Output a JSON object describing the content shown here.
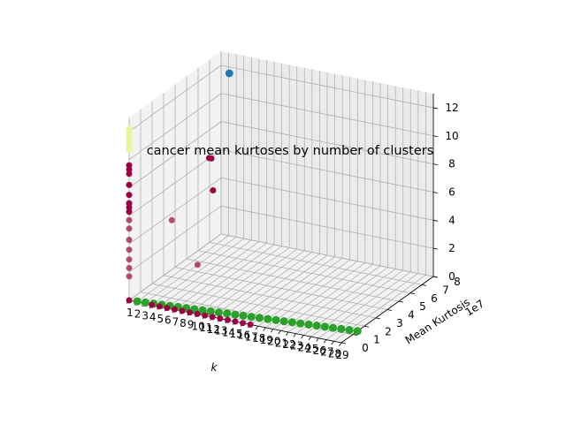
{
  "chart_data": {
    "type": "scatter",
    "projection": "3d",
    "title": "cancer mean kurtoses by number of clusters",
    "xlabel": "k",
    "ylabel": "Mean Kurtosis",
    "zlabel": "",
    "y_offset_label": "1e7",
    "grid": true,
    "x_ticks": [
      "1",
      "2",
      "3",
      "4",
      "5",
      "6",
      "7",
      "8",
      "9",
      "10",
      "11",
      "12",
      "13",
      "14",
      "15",
      "16",
      "17",
      "18",
      "19",
      "20",
      "21",
      "22",
      "23",
      "24",
      "25",
      "26",
      "27",
      "28",
      "29"
    ],
    "y_ticks": [
      "0",
      "1",
      "2",
      "3",
      "4",
      "5",
      "6",
      "7",
      "8"
    ],
    "z_ticks": [
      "0",
      "2",
      "4",
      "6",
      "8",
      "10",
      "12"
    ],
    "xlim": [
      1,
      29
    ],
    "ylim": [
      0,
      8
    ],
    "zlim": [
      0,
      13
    ],
    "colors": {
      "pane": "#f2f2f2",
      "highlight": "#1f77b4",
      "series_a": "#2ca02c",
      "series_b": "#9e0142",
      "series_c": "#e6f598"
    },
    "series": [
      {
        "color": "#2ca02c",
        "points": [
          [
            2,
            0.05,
            0
          ],
          [
            3,
            0.1,
            0
          ],
          [
            4,
            0.15,
            0
          ],
          [
            5,
            0.2,
            0
          ],
          [
            6,
            0.25,
            0
          ],
          [
            7,
            0.3,
            0
          ],
          [
            8,
            0.35,
            0
          ],
          [
            9,
            0.4,
            0
          ],
          [
            10,
            0.45,
            0
          ],
          [
            11,
            0.5,
            0
          ],
          [
            12,
            0.55,
            0
          ],
          [
            13,
            0.6,
            0
          ],
          [
            14,
            0.65,
            0
          ],
          [
            15,
            0.7,
            0
          ],
          [
            16,
            0.75,
            0
          ],
          [
            17,
            0.8,
            0
          ],
          [
            18,
            0.85,
            0
          ],
          [
            19,
            0.9,
            0
          ],
          [
            20,
            0.95,
            0
          ],
          [
            21,
            1.0,
            0
          ],
          [
            22,
            1.05,
            0
          ],
          [
            23,
            1.1,
            0
          ],
          [
            24,
            1.15,
            0
          ],
          [
            25,
            1.2,
            0
          ],
          [
            26,
            1.25,
            0
          ],
          [
            27,
            1.3,
            0
          ],
          [
            28,
            1.35,
            0
          ],
          [
            29,
            1.4,
            0
          ]
        ]
      },
      {
        "color": "#9e0142",
        "points": [
          [
            1,
            0,
            0
          ],
          [
            4,
            0,
            0
          ],
          [
            5,
            0,
            0
          ],
          [
            6,
            0,
            0
          ],
          [
            7,
            0,
            0
          ],
          [
            8,
            0,
            0
          ],
          [
            9,
            0,
            0
          ],
          [
            10,
            0,
            0
          ],
          [
            11,
            0,
            0
          ],
          [
            12,
            0,
            0
          ],
          [
            13,
            0,
            0
          ],
          [
            14,
            0,
            0
          ],
          [
            15,
            0,
            0
          ],
          [
            16,
            0,
            0
          ],
          [
            17,
            0,
            0
          ]
        ]
      },
      {
        "color": "#9e0142",
        "points": [
          [
            1,
            0,
            9.6
          ],
          [
            1,
            0,
            9.3
          ],
          [
            1,
            0,
            9.0
          ],
          [
            1,
            0,
            8.2
          ],
          [
            1,
            0,
            7.5
          ],
          [
            1,
            0,
            6.9
          ],
          [
            1,
            0,
            6.6
          ],
          [
            1,
            0,
            6.3
          ],
          [
            1,
            0,
            5.7
          ],
          [
            1,
            0,
            5.1
          ],
          [
            1,
            0,
            4.3
          ],
          [
            1,
            0,
            3.6
          ],
          [
            1,
            0,
            2.9
          ],
          [
            1,
            0,
            2.3
          ],
          [
            1,
            0,
            1.7
          ]
        ]
      },
      {
        "color": "#e6f598",
        "points": [
          [
            1,
            0,
            12.2
          ],
          [
            1,
            0,
            11.9
          ],
          [
            1,
            0,
            11.6
          ],
          [
            1,
            0,
            11.3
          ],
          [
            1,
            0,
            11.0
          ],
          [
            1,
            0,
            10.7
          ]
        ]
      },
      {
        "color": "#9e0142",
        "points": [
          [
            7,
            3.0,
            9.0
          ],
          [
            7.3,
            3.0,
            9.0
          ],
          [
            3,
            2.4,
            4.5
          ],
          [
            6,
            4.0,
            6.0
          ],
          [
            7,
            2.0,
            2.0
          ]
        ]
      },
      {
        "color": "#1f77b4",
        "points": [
          [
            3,
            7.4,
            12.0
          ]
        ]
      }
    ]
  }
}
